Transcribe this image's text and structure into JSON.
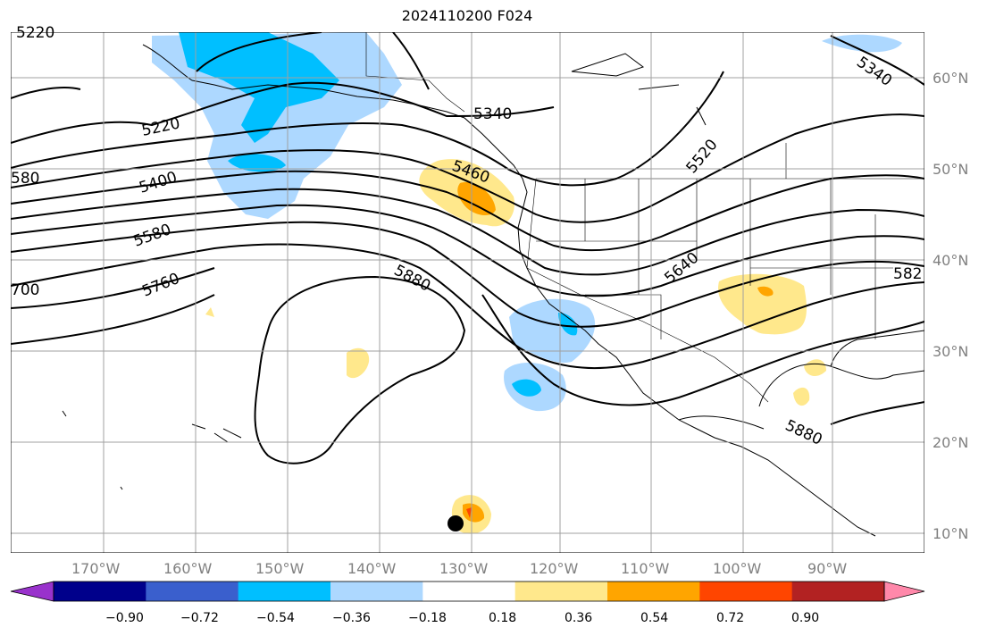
{
  "title": "2024110200 F024",
  "lon_labels": [
    "170°W",
    "160°W",
    "150°W",
    "140°W",
    "130°W",
    "120°W",
    "110°W",
    "100°W",
    "90°W"
  ],
  "lat_labels": [
    "60°N",
    "50°N",
    "40°N",
    "30°N",
    "20°N",
    "10°N"
  ],
  "colorbar": {
    "ticks": [
      "−0.90",
      "−0.72",
      "−0.54",
      "−0.36",
      "−0.18",
      "0.18",
      "0.36",
      "0.54",
      "0.72",
      "0.90"
    ],
    "colors": [
      "#9932cc",
      "#00008b",
      "#3a5fcd",
      "#00bfff",
      "#add8ff",
      "#ffffff",
      "#ffe88c",
      "#ffa500",
      "#ff4500",
      "#b22222",
      "#ff88aa"
    ]
  },
  "contour_labels": [
    "5220",
    "5340",
    "5460",
    "5520",
    "5640",
    "5400",
    "5580",
    "5760",
    "5880",
    "5880",
    "5340",
    "580",
    "700",
    "582"
  ],
  "colors": {
    "fill_cold": "#add8ff",
    "fill_cold_strong": "#00bfff",
    "fill_warm": "#ffe88c",
    "fill_warm_strong": "#ffa500",
    "fill_hot": "#ff4500"
  }
}
